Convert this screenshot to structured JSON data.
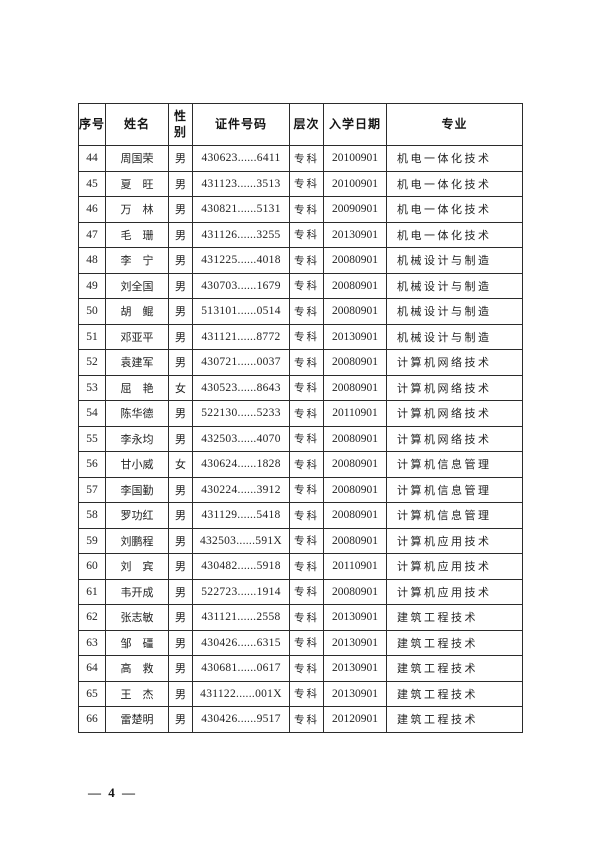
{
  "page": {
    "footer_page_number": "— 4 —"
  },
  "table": {
    "headers": [
      "序号",
      "姓名",
      "性别",
      "证件号码",
      "层次",
      "入学日期",
      "专业"
    ],
    "rows": [
      [
        "44",
        "周国荣",
        "男",
        "430623......6411",
        "专科",
        "20100901",
        "机电一体化技术"
      ],
      [
        "45",
        "夏　旺",
        "男",
        "431123......3513",
        "专科",
        "20100901",
        "机电一体化技术"
      ],
      [
        "46",
        "万　林",
        "男",
        "430821......5131",
        "专科",
        "20090901",
        "机电一体化技术"
      ],
      [
        "47",
        "毛　珊",
        "男",
        "431126......3255",
        "专科",
        "20130901",
        "机电一体化技术"
      ],
      [
        "48",
        "李　宁",
        "男",
        "431225......4018",
        "专科",
        "20080901",
        "机械设计与制造"
      ],
      [
        "49",
        "刘全国",
        "男",
        "430703......1679",
        "专科",
        "20080901",
        "机械设计与制造"
      ],
      [
        "50",
        "胡　鲲",
        "男",
        "513101......0514",
        "专科",
        "20080901",
        "机械设计与制造"
      ],
      [
        "51",
        "邓亚平",
        "男",
        "431121......8772",
        "专科",
        "20130901",
        "机械设计与制造"
      ],
      [
        "52",
        "袁建军",
        "男",
        "430721......0037",
        "专科",
        "20080901",
        "计算机网络技术"
      ],
      [
        "53",
        "屈　艳",
        "女",
        "430523......8643",
        "专科",
        "20080901",
        "计算机网络技术"
      ],
      [
        "54",
        "陈华德",
        "男",
        "522130......5233",
        "专科",
        "20110901",
        "计算机网络技术"
      ],
      [
        "55",
        "李永均",
        "男",
        "432503......4070",
        "专科",
        "20080901",
        "计算机网络技术"
      ],
      [
        "56",
        "甘小威",
        "女",
        "430624......1828",
        "专科",
        "20080901",
        "计算机信息管理"
      ],
      [
        "57",
        "李国勤",
        "男",
        "430224......3912",
        "专科",
        "20080901",
        "计算机信息管理"
      ],
      [
        "58",
        "罗功红",
        "男",
        "431129......5418",
        "专科",
        "20080901",
        "计算机信息管理"
      ],
      [
        "59",
        "刘鹏程",
        "男",
        "432503......591X",
        "专科",
        "20080901",
        "计算机应用技术"
      ],
      [
        "60",
        "刘　宾",
        "男",
        "430482......5918",
        "专科",
        "20110901",
        "计算机应用技术"
      ],
      [
        "61",
        "韦开成",
        "男",
        "522723......1914",
        "专科",
        "20080901",
        "计算机应用技术"
      ],
      [
        "62",
        "张志敏",
        "男",
        "431121......2558",
        "专科",
        "20130901",
        "建筑工程技术"
      ],
      [
        "63",
        "邹　礓",
        "男",
        "430426......6315",
        "专科",
        "20130901",
        "建筑工程技术"
      ],
      [
        "64",
        "高　救",
        "男",
        "430681......0617",
        "专科",
        "20130901",
        "建筑工程技术"
      ],
      [
        "65",
        "王　杰",
        "男",
        "431122......001X",
        "专科",
        "20130901",
        "建筑工程技术"
      ],
      [
        "66",
        "雷楚明",
        "男",
        "430426......9517",
        "专科",
        "20120901",
        "建筑工程技术"
      ]
    ]
  }
}
